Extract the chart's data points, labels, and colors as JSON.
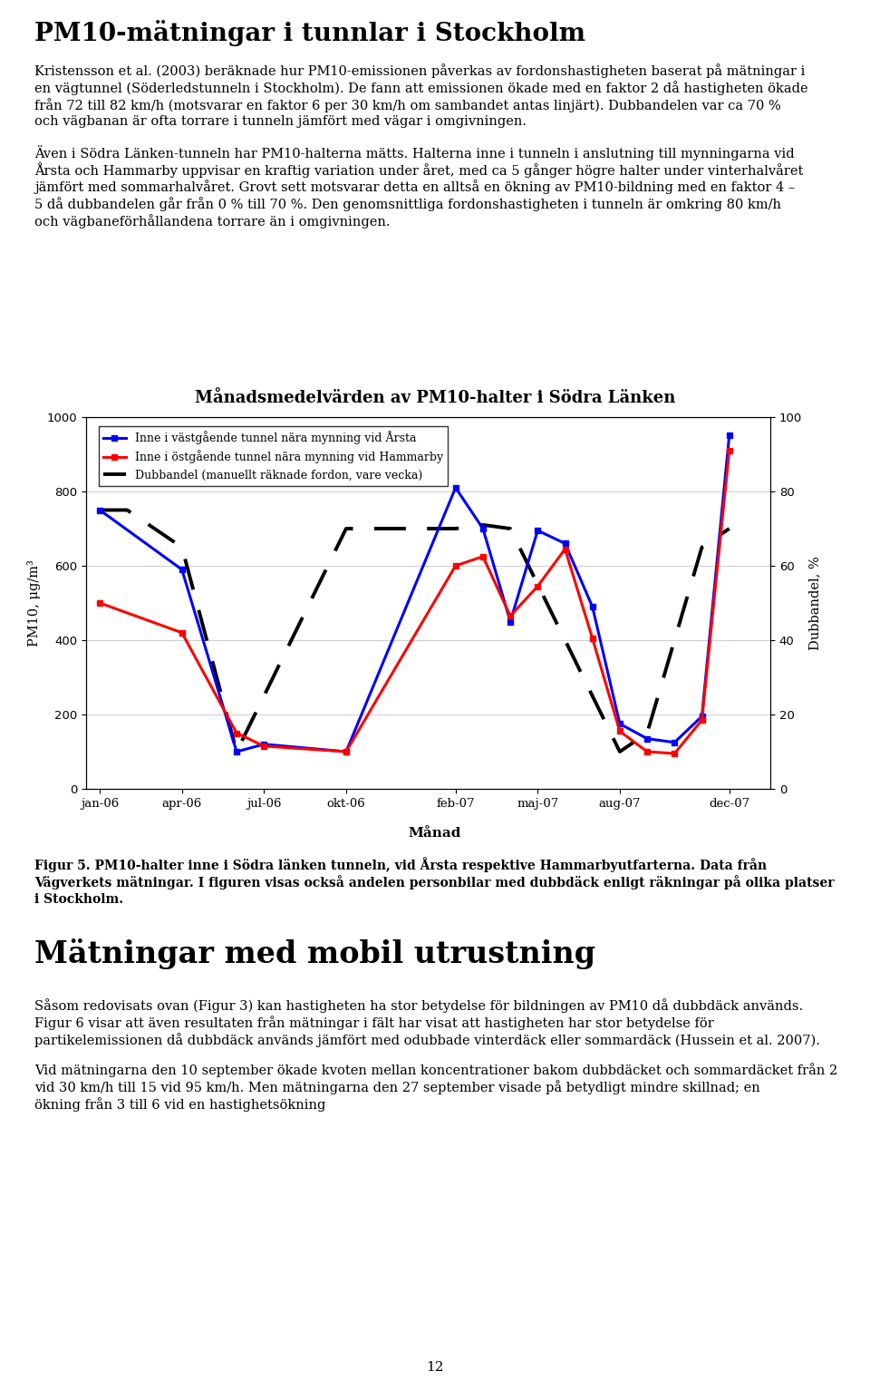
{
  "title": "MånadsmedElvärden av PM10-halter i Södra Länken",
  "chart_title": "MånadsmedElvärden av PM10-halter i Södra Länken",
  "xlabel": "Månad",
  "ylabel_left": "PM10, μg/m³",
  "ylabel_right": "Dubbandel, %",
  "x_labels": [
    "jan-06",
    "apr-06",
    "jul-06",
    "okt-06",
    "feb-07",
    "maj-07",
    "aug-07",
    "dec-07"
  ],
  "x_positions": [
    0,
    3,
    6,
    9,
    13,
    16,
    19,
    23
  ],
  "blue_x": [
    0,
    3,
    5,
    6,
    9,
    13,
    14,
    15,
    16,
    17,
    18,
    19,
    20,
    21,
    22,
    23
  ],
  "blue_y": [
    750,
    590,
    100,
    120,
    100,
    810,
    700,
    450,
    695,
    660,
    490,
    175,
    135,
    125,
    195,
    950
  ],
  "red_x": [
    0,
    3,
    5,
    6,
    9,
    13,
    14,
    15,
    16,
    17,
    18,
    19,
    20,
    21,
    22,
    23
  ],
  "red_y": [
    500,
    420,
    150,
    115,
    100,
    600,
    625,
    465,
    545,
    645,
    405,
    155,
    100,
    95,
    185,
    910
  ],
  "dub_x": [
    0,
    1,
    3,
    5,
    9,
    13,
    14,
    15,
    19,
    20,
    22,
    23
  ],
  "dub_y": [
    750,
    750,
    650,
    100,
    700,
    700,
    710,
    700,
    100,
    150,
    650,
    700
  ],
  "ylim_left": [
    0,
    1000
  ],
  "ylim_right": [
    0,
    100
  ],
  "yticks_left": [
    0,
    200,
    400,
    600,
    800,
    1000
  ],
  "yticks_right": [
    0,
    20,
    40,
    60,
    80,
    100
  ],
  "legend_blue": "Inne i västgående tunnel nära mynning vid Årsta",
  "legend_red": "Inne i östgående tunnel nära mynning vid Hammarby",
  "legend_dub": "Dubbandel (manuellt räknade fordon, vare vecka)",
  "blue_color": "#0000FF",
  "red_color": "#FF0000",
  "dub_color": "#000000",
  "main_title": "PM10-mätningar i tunnlar i Stockholm",
  "para1": [
    "Kristensson et al. (2003) beräknade hur PM10-emissionen påverkas av fordonshastigheten baserat på mätningar i en",
    "vägtunnel (Söderledstunneln i Stockholm). De fann att emissionen ökade med en faktor 2 då hastigheten ökade från 72",
    "till 82 km/h (motsvarar en faktor 6 per 30 km/h om sambandet antas linjärt). Dubbandelen var ca 70 % och vägbanan",
    "är ofta torrare i tunneln jämfört med vägar i omgivningen."
  ],
  "para2": [
    "Även i Södra Länken-tunneln har PM10-halterna mätts. Halterna inne i tunneln i anslutning till mynningarna vid Årsta",
    "och Hammarby uppvisar en kraftig variation under året, med ca 5 gånger högre halter under vinterhalvåret jämfört",
    "med sommarhalvåret. Grovt sett motsvarar detta en alltså en ökning av PM10-bildning med en faktor 4 – 5 då",
    "dubbandelen går från 0 % till 70 %. Den genomsnittliga fordonshastigheten i tunneln är omkring 80 km/h och",
    "vägbaneFörhållandena torrare än i omgivningen."
  ],
  "fig_cap": [
    "Figur 5. PM10-halter inne i Södra länken tunneln, vid Årsta respektive Hammarbyutfarterna. Data från",
    "Vägverkets mätningar. I figuren visas också andelen personbilar med dubbDäck enligt räkningar på olika",
    "platser i Stockholm."
  ],
  "section": "Mätningar med mobil utrustning",
  "para3": [
    "Såsom redovisats ovan (Figur 3) kan hastigheten ha stor betydelse för bildningen av PM10 då dubbDäck används.",
    "Figur 6 visar att även resultaten från mätningar i fält har visat att hastigheten har stor betydelse för",
    "partikelemissionen då dubbDäck används jämfört med odubbade vinterdäck eller sommardäck (Hussein et al. 2007)."
  ],
  "para4": [
    "Vid mätningarna den 10 september ökade kvoten mellan koncentrationer bakom dubbDäcket och sommardäcket",
    "från 2 vid 30 km/h till 15 vid 95 km/h. Men mätningarna den 27 september visade på betydligt mindre skillnad;",
    "en ökning från 3 till 6 vid en hastighetsökning"
  ],
  "page_number": "12",
  "bg": "#FFFFFF",
  "fig_width": 9.6,
  "fig_height": 15.33,
  "dpi": 100
}
